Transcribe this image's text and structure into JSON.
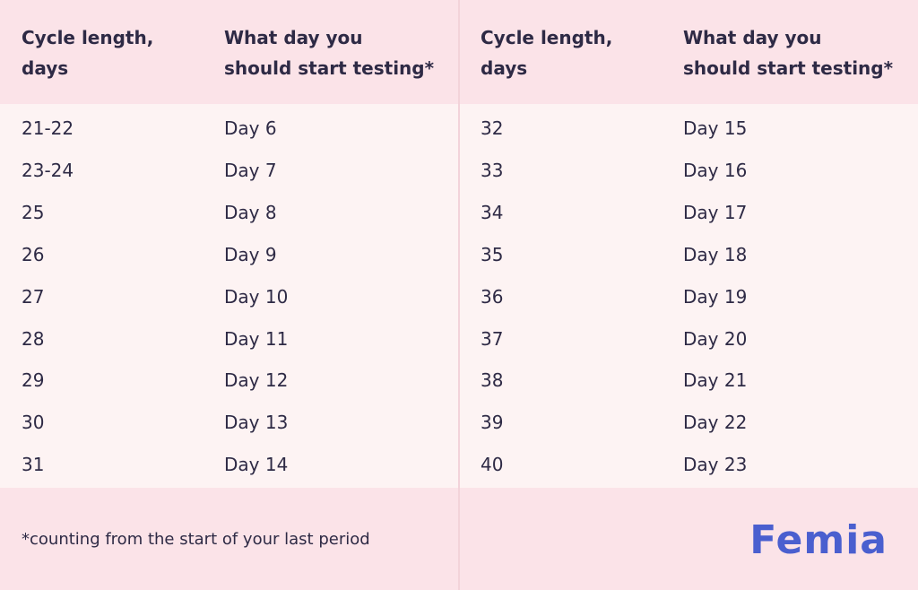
{
  "tables": [
    {
      "header": [
        [
          "Cycle length,",
          "days"
        ],
        [
          "What day you",
          "should start testing*"
        ]
      ],
      "rows": [
        [
          "21-22",
          "Day 6"
        ],
        [
          "23-24",
          "Day 7"
        ],
        [
          "25",
          "Day 8"
        ],
        [
          "26",
          "Day 9"
        ],
        [
          "27",
          "Day 10"
        ],
        [
          "28",
          "Day 11"
        ],
        [
          "29",
          "Day 12"
        ],
        [
          "30",
          "Day 13"
        ],
        [
          "31",
          "Day 14"
        ]
      ]
    },
    {
      "header": [
        [
          "Cycle length,",
          "days"
        ],
        [
          "What day you",
          "should start testing*"
        ]
      ],
      "rows": [
        [
          "32",
          "Day 15"
        ],
        [
          "33",
          "Day 16"
        ],
        [
          "34",
          "Day 17"
        ],
        [
          "35",
          "Day 18"
        ],
        [
          "36",
          "Day 19"
        ],
        [
          "37",
          "Day 20"
        ],
        [
          "38",
          "Day 21"
        ],
        [
          "39",
          "Day 22"
        ],
        [
          "40",
          "Day 23"
        ]
      ]
    }
  ],
  "footnote": "*counting from the start of your last period",
  "logo": "Femia"
}
